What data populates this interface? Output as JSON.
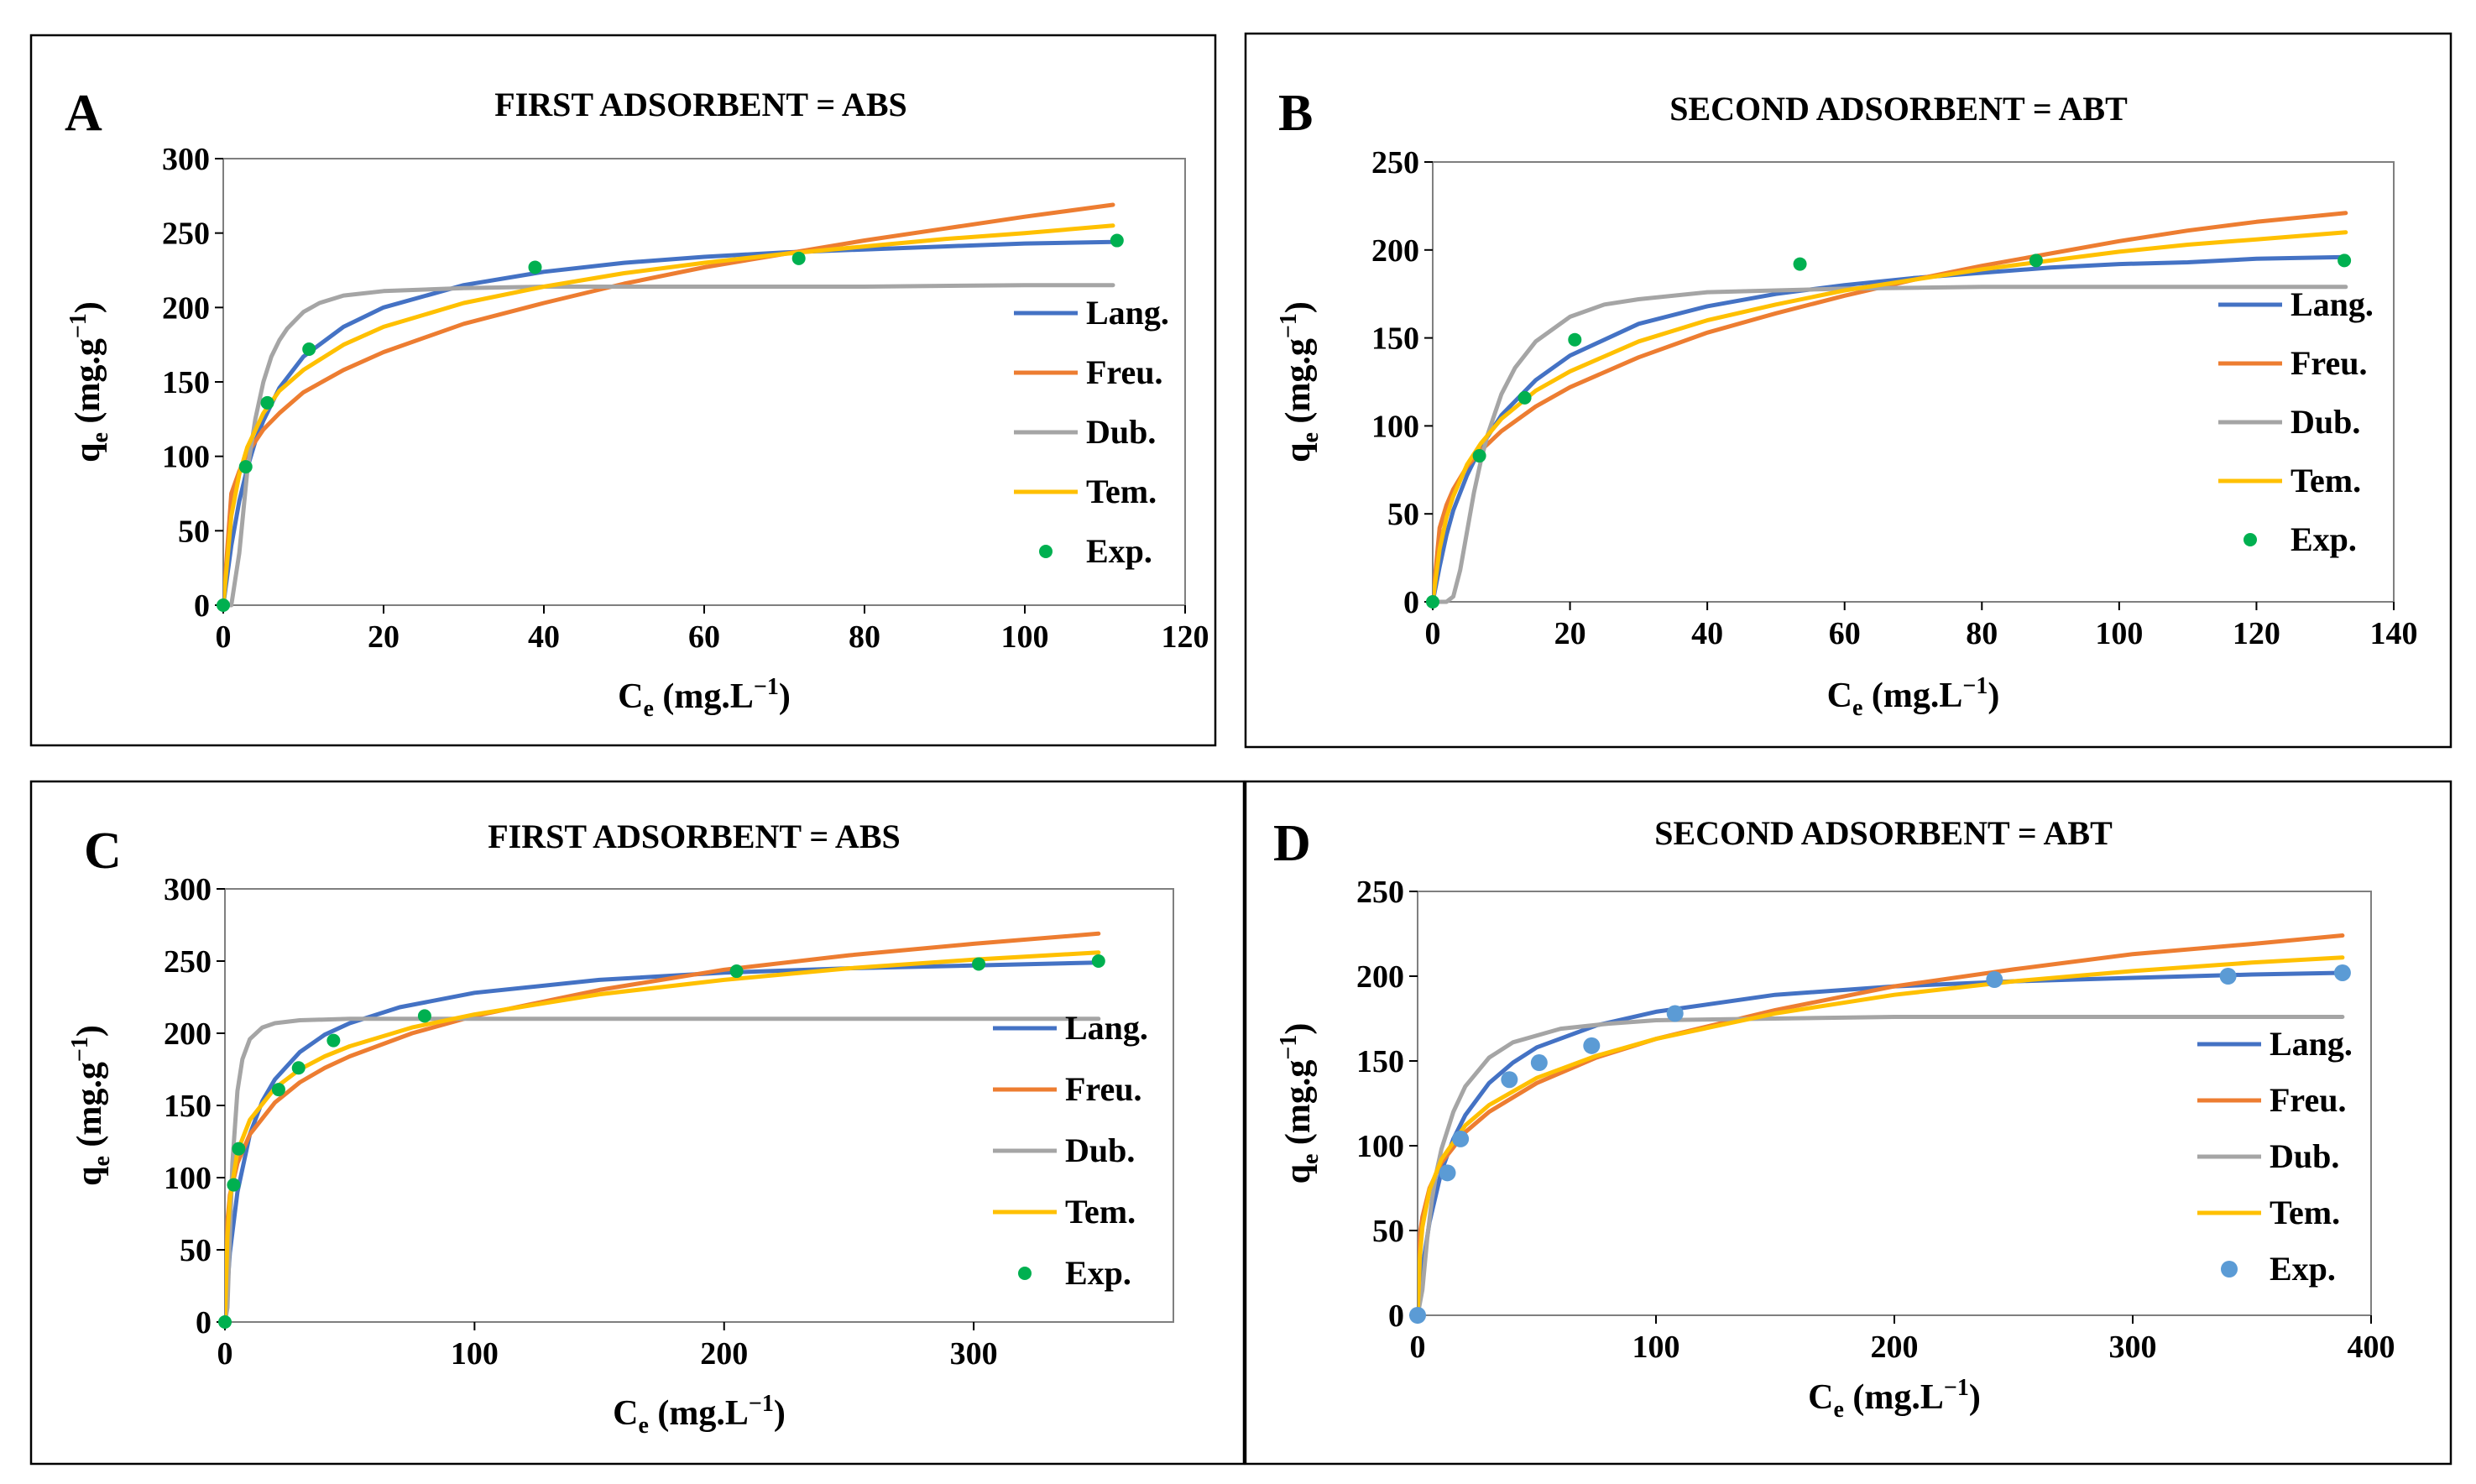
{
  "figure": {
    "legend_labels": [
      "Lang.",
      "Freu.",
      "Dub.",
      "Tem.",
      "Exp."
    ],
    "colors": {
      "lang": "#4472C4",
      "freu": "#ED7D31",
      "dub": "#A5A5A5",
      "tem": "#FFC000",
      "exp_green": "#00B050",
      "exp_blue": "#5B9BD5"
    }
  },
  "chart_data": [
    {
      "type": "scatter",
      "panel_letter": "A",
      "title": "FIRST ADSORBENT = ABS",
      "xlabel": "Ce (mg.L−1)",
      "ylabel": "qe (mg.g−1)",
      "xlim": [
        0,
        120
      ],
      "ylim": [
        0,
        300
      ],
      "xticks": [
        0,
        20,
        40,
        60,
        80,
        100,
        120
      ],
      "yticks": [
        0,
        50,
        100,
        150,
        200,
        250,
        300
      ],
      "grid": false,
      "legend": "right",
      "exp_color": "#00B050",
      "series": [
        {
          "name": "Lang.",
          "x": [
            0,
            1,
            2,
            3,
            4,
            5,
            7,
            10,
            15,
            20,
            30,
            40,
            50,
            60,
            70,
            80,
            90,
            100,
            111
          ],
          "y": [
            0,
            40,
            70,
            92,
            110,
            124,
            146,
            167,
            187,
            200,
            215,
            224,
            230,
            234,
            237,
            239,
            241,
            243,
            244
          ]
        },
        {
          "name": "Freu.",
          "x": [
            0,
            1,
            2,
            3,
            5,
            7,
            10,
            15,
            20,
            30,
            40,
            50,
            60,
            70,
            80,
            90,
            100,
            111
          ],
          "y": [
            0,
            75,
            90,
            102,
            118,
            129,
            143,
            158,
            170,
            189,
            203,
            216,
            227,
            236,
            245,
            253,
            261,
            269
          ]
        },
        {
          "name": "Dub.",
          "x": [
            0,
            1,
            2,
            3,
            4,
            5,
            6,
            7,
            8,
            10,
            12,
            15,
            20,
            30,
            40,
            60,
            80,
            100,
            111
          ],
          "y": [
            0,
            0,
            35,
            90,
            125,
            150,
            167,
            178,
            186,
            197,
            203,
            208,
            211,
            213,
            214,
            214,
            214,
            215,
            215
          ]
        },
        {
          "name": "Tem.",
          "x": [
            0,
            1,
            2,
            3,
            5,
            7,
            10,
            15,
            20,
            30,
            40,
            50,
            60,
            70,
            80,
            90,
            100,
            111
          ],
          "y": [
            0,
            60,
            88,
            106,
            129,
            144,
            158,
            175,
            187,
            203,
            214,
            223,
            230,
            236,
            241,
            246,
            250,
            255
          ]
        },
        {
          "name": "Exp.",
          "x": [
            0,
            2.8,
            5.5,
            10.7,
            38.9,
            71.8,
            111.5
          ],
          "y": [
            0,
            93,
            136,
            172,
            227,
            233,
            245
          ]
        }
      ]
    },
    {
      "type": "scatter",
      "panel_letter": "B",
      "title": "SECOND ADSORBENT = ABT",
      "xlabel": "Ce (mg.L−1)",
      "ylabel": "qe (mg.g−1)",
      "xlim": [
        0,
        140
      ],
      "ylim": [
        0,
        250
      ],
      "xticks": [
        0,
        20,
        40,
        60,
        80,
        100,
        120,
        140
      ],
      "yticks": [
        0,
        50,
        100,
        150,
        200,
        250
      ],
      "grid": false,
      "legend": "right",
      "exp_color": "#00B050",
      "series": [
        {
          "name": "Lang.",
          "x": [
            0,
            1,
            2,
            3,
            5,
            7,
            10,
            15,
            20,
            30,
            40,
            50,
            60,
            70,
            80,
            90,
            100,
            110,
            120,
            133
          ],
          "y": [
            0,
            20,
            38,
            52,
            72,
            88,
            106,
            126,
            140,
            158,
            168,
            175,
            180,
            184,
            187,
            190,
            192,
            193,
            195,
            196
          ]
        },
        {
          "name": "Freu.",
          "x": [
            0,
            1,
            2,
            3,
            5,
            7,
            10,
            15,
            20,
            30,
            40,
            50,
            60,
            70,
            80,
            90,
            100,
            110,
            120,
            133
          ],
          "y": [
            0,
            42,
            55,
            64,
            77,
            86,
            97,
            111,
            122,
            139,
            153,
            164,
            174,
            183,
            191,
            198,
            205,
            211,
            216,
            221
          ]
        },
        {
          "name": "Dub.",
          "x": [
            0,
            2,
            3,
            4,
            5,
            6,
            7,
            8,
            10,
            12,
            15,
            20,
            25,
            30,
            40,
            60,
            80,
            100,
            133
          ],
          "y": [
            0,
            0,
            3,
            18,
            40,
            62,
            80,
            95,
            118,
            133,
            148,
            162,
            169,
            172,
            176,
            178,
            179,
            179,
            179
          ]
        },
        {
          "name": "Tem.",
          "x": [
            0,
            1,
            2,
            3,
            5,
            7,
            10,
            15,
            20,
            30,
            40,
            50,
            60,
            70,
            80,
            90,
            100,
            110,
            120,
            133
          ],
          "y": [
            0,
            30,
            48,
            60,
            78,
            90,
            104,
            120,
            131,
            148,
            160,
            169,
            177,
            183,
            189,
            194,
            199,
            203,
            206,
            210
          ]
        },
        {
          "name": "Exp.",
          "x": [
            0,
            6.8,
            13.4,
            20.7,
            53.5,
            87.9,
            132.8
          ],
          "y": [
            0,
            83,
            116,
            149,
            192,
            194,
            194
          ]
        }
      ]
    },
    {
      "type": "scatter",
      "panel_letter": "C",
      "title": "FIRST ADSORBENT = ABS",
      "xlabel": "Ce (mg.L−1)",
      "ylabel": "qe (mg.g−1)",
      "xlim": [
        0,
        380
      ],
      "ylim": [
        0,
        300
      ],
      "xticks": [
        0,
        100,
        200,
        300
      ],
      "yticks": [
        0,
        50,
        100,
        150,
        200,
        250,
        300
      ],
      "grid": false,
      "legend": "right",
      "exp_color": "#00B050",
      "series": [
        {
          "name": "Lang.",
          "x": [
            0,
            2,
            5,
            10,
            15,
            20,
            30,
            40,
            50,
            70,
            100,
            150,
            200,
            250,
            300,
            350
          ],
          "y": [
            0,
            48,
            90,
            130,
            153,
            168,
            187,
            199,
            207,
            218,
            228,
            237,
            242,
            245,
            247,
            249
          ]
        },
        {
          "name": "Freu.",
          "x": [
            0,
            1,
            2,
            5,
            10,
            20,
            30,
            40,
            50,
            75,
            100,
            150,
            200,
            250,
            300,
            350
          ],
          "y": [
            0,
            70,
            88,
            110,
            130,
            152,
            166,
            176,
            184,
            200,
            212,
            230,
            244,
            254,
            262,
            269
          ]
        },
        {
          "name": "Dub.",
          "x": [
            0,
            1,
            2,
            3,
            5,
            7,
            10,
            15,
            20,
            30,
            50,
            100,
            200,
            350
          ],
          "y": [
            0,
            10,
            60,
            110,
            160,
            182,
            196,
            204,
            207,
            209,
            210,
            210,
            210,
            210
          ]
        },
        {
          "name": "Tem.",
          "x": [
            0,
            1,
            2,
            5,
            10,
            20,
            30,
            40,
            50,
            75,
            100,
            150,
            200,
            250,
            300,
            350
          ],
          "y": [
            0,
            60,
            85,
            118,
            140,
            162,
            175,
            184,
            191,
            204,
            213,
            227,
            237,
            245,
            251,
            256
          ]
        },
        {
          "name": "Exp.",
          "x": [
            0,
            3.5,
            5.5,
            21.5,
            29.5,
            43.5,
            80,
            205,
            302,
            350
          ],
          "y": [
            0,
            95,
            120,
            161,
            176,
            195,
            212,
            243,
            248,
            250
          ]
        }
      ]
    },
    {
      "type": "scatter",
      "panel_letter": "D",
      "title": "SECOND ADSORBENT = ABT",
      "xlabel": "Ce (mg.L−1)",
      "ylabel": "qe (mg.g−1)",
      "xlim": [
        0,
        400
      ],
      "ylim": [
        0,
        250
      ],
      "xticks": [
        0,
        100,
        200,
        300,
        400
      ],
      "yticks": [
        0,
        50,
        100,
        150,
        200,
        250
      ],
      "grid": false,
      "legend": "right",
      "exp_color": "#5B9BD5",
      "series": [
        {
          "name": "Lang.",
          "x": [
            0,
            2,
            5,
            10,
            15,
            20,
            30,
            40,
            50,
            75,
            100,
            150,
            200,
            250,
            300,
            350,
            388
          ],
          "y": [
            0,
            28,
            55,
            85,
            104,
            118,
            137,
            149,
            158,
            171,
            179,
            189,
            194,
            197,
            199,
            201,
            202
          ]
        },
        {
          "name": "Freu.",
          "x": [
            0,
            1,
            2,
            5,
            10,
            20,
            30,
            50,
            75,
            100,
            150,
            200,
            250,
            300,
            350,
            388
          ],
          "y": [
            0,
            48,
            58,
            75,
            90,
            108,
            120,
            137,
            152,
            163,
            180,
            194,
            204,
            213,
            219,
            224
          ]
        },
        {
          "name": "Dub.",
          "x": [
            0,
            2,
            4,
            6,
            8,
            10,
            15,
            20,
            30,
            40,
            60,
            80,
            100,
            200,
            388
          ],
          "y": [
            0,
            15,
            45,
            68,
            85,
            98,
            120,
            135,
            152,
            161,
            169,
            172,
            174,
            176,
            176
          ]
        },
        {
          "name": "Tem.",
          "x": [
            0,
            1,
            2,
            5,
            10,
            20,
            30,
            50,
            75,
            100,
            150,
            200,
            250,
            300,
            350,
            388
          ],
          "y": [
            0,
            35,
            52,
            74,
            92,
            112,
            124,
            140,
            153,
            163,
            178,
            189,
            197,
            203,
            208,
            211
          ]
        },
        {
          "name": "Exp.",
          "x": [
            0,
            12.5,
            18,
            38.5,
            51,
            73,
            108,
            242,
            340,
            388
          ],
          "y": [
            0,
            84,
            104,
            139,
            149,
            159,
            178,
            198,
            200,
            202
          ]
        }
      ]
    }
  ]
}
